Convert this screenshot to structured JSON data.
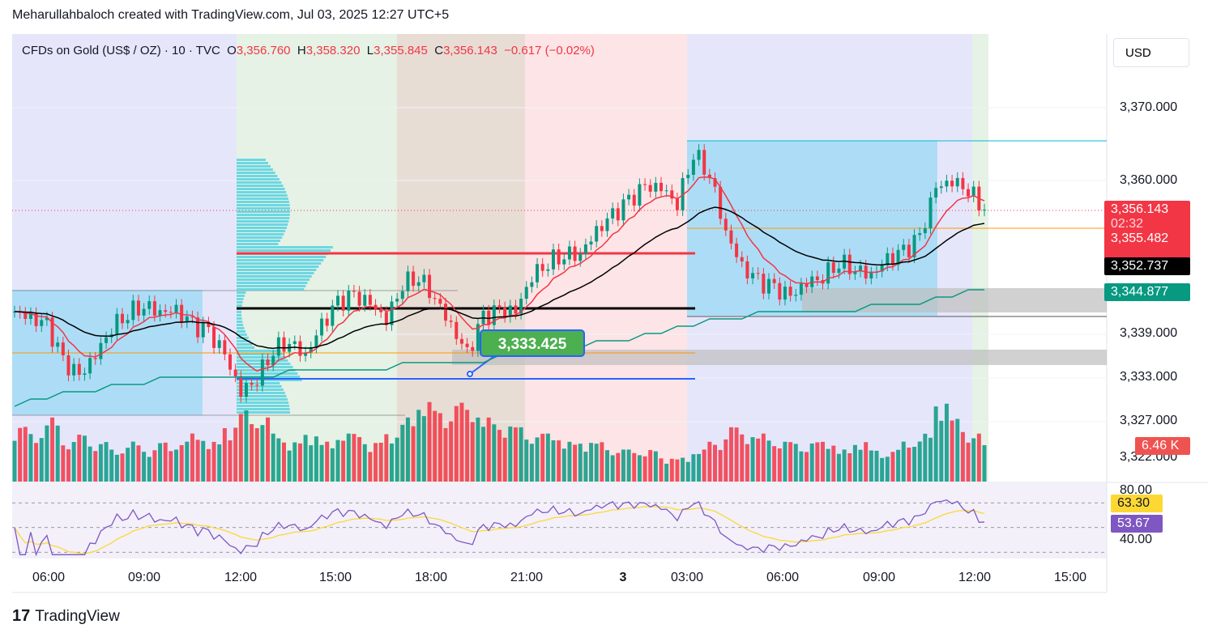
{
  "header": "Meharullahbaloch created with TradingView.com, Jul 03, 2025 12:27 UTC+5",
  "legend": {
    "symbol": "CFDs on Gold (US$ / OZ) · 10 · TVC",
    "o_label": "O",
    "o": "3,356.760",
    "h_label": "H",
    "h": "3,358.320",
    "l_label": "L",
    "l": "3,355.845",
    "c_label": "C",
    "c": "3,356.143",
    "change": "−0.617 (−0.02%)"
  },
  "currency": "USD",
  "price_labels": {
    "last": "3,356.143",
    "countdown": "02:32",
    "ma_fast": "3,355.482",
    "ma_mid": "3,352.737",
    "ma_slow": "3,344.877",
    "volume": "6.46 K",
    "rsi_ma": "63.30",
    "rsi": "53.67"
  },
  "callout": "3,333.425",
  "brand": "TradingView",
  "colors": {
    "up": "#089981",
    "down": "#f23645",
    "ma_fast": "#f23645",
    "ma_mid": "#000000",
    "ma_slow": "#089981",
    "rsi": "#7e57c2",
    "rsi_ma": "#fdd835"
  },
  "chart_data": {
    "type": "candlestick",
    "y_ticks": [
      "3,370.000",
      "3,360.000",
      "3,339.000",
      "3,333.000",
      "3,327.000",
      "3,322.000"
    ],
    "y_tick_values": [
      3370,
      3360,
      3339,
      3333,
      3327,
      3322
    ],
    "rsi_ticks": [
      "80.00",
      "40.00"
    ],
    "x_ticks": [
      "06:00",
      "09:00",
      "12:00",
      "15:00",
      "18:00",
      "21:00",
      "3",
      "03:00",
      "06:00",
      "09:00",
      "12:00",
      "15:00"
    ],
    "closes": [
      3342,
      3341,
      3340,
      3335,
      3333,
      3336,
      3340,
      3342,
      3343,
      3342,
      3342,
      3340,
      3339,
      3336,
      3331,
      3333,
      3337,
      3338,
      3336,
      3340,
      3343,
      3344,
      3343,
      3341,
      3346,
      3347,
      3344,
      3340,
      3336,
      3341,
      3342,
      3342,
      3347,
      3349,
      3350,
      3350,
      3353,
      3355,
      3357,
      3359,
      3359,
      3357,
      3364,
      3361,
      3353,
      3348,
      3346,
      3345,
      3344,
      3346,
      3347,
      3349,
      3348,
      3347,
      3349,
      3350,
      3352,
      3359,
      3360,
      3359,
      3356
    ],
    "volumes": [
      7,
      6,
      8,
      5,
      6,
      5,
      4,
      5,
      4,
      5,
      5,
      6,
      5,
      7,
      9,
      8,
      6,
      5,
      6,
      5,
      6,
      6,
      5,
      6,
      8,
      10,
      9,
      10,
      9,
      8,
      7,
      7,
      6,
      6,
      5,
      5,
      5,
      4,
      4,
      4,
      3,
      3,
      4,
      5,
      7,
      6,
      6,
      5,
      5,
      5,
      5,
      4,
      5,
      4,
      4,
      5,
      6,
      10,
      8,
      6,
      5
    ],
    "ma_slow": [
      3329,
      3330,
      3330,
      3331,
      3331,
      3331,
      3332,
      3332,
      3332,
      3333,
      3333,
      3333,
      3333,
      3333,
      3333,
      3333,
      3333,
      3334,
      3334,
      3334,
      3334,
      3334,
      3334,
      3334,
      3335,
      3335,
      3335,
      3335,
      3335,
      3335,
      3336,
      3336,
      3336,
      3336,
      3337,
      3337,
      3338,
      3338,
      3338,
      3339,
      3339,
      3340,
      3340,
      3341,
      3341,
      3341,
      3342,
      3342,
      3342,
      3342,
      3342,
      3342,
      3342,
      3343,
      3343,
      3343,
      3343,
      3344,
      3344,
      3345,
      3345
    ]
  }
}
